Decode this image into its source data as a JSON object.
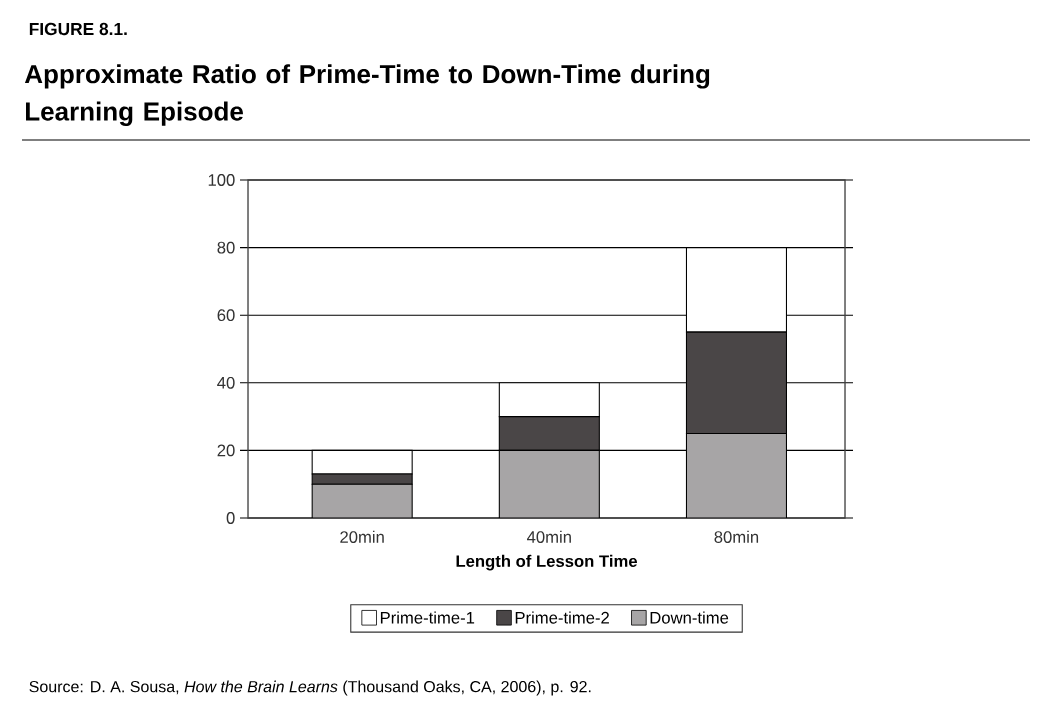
{
  "chart_data": {
    "type": "bar",
    "stacked": true,
    "subtitle": "FIGURE 8.1.",
    "title": "Approximate Ratio of Prime-Time to Down-Time during Learning Episode",
    "xlabel": "Length of Lesson Time",
    "categories": [
      "20min",
      "40min",
      "80min"
    ],
    "series": [
      {
        "name": "Down-time",
        "color": "#a7a5a6",
        "values": [
          10,
          20,
          25
        ]
      },
      {
        "name": "Prime-time-2",
        "color": "#4a4647",
        "values": [
          3,
          10,
          30
        ]
      },
      {
        "name": "Prime-time-1",
        "color": "#ffffff",
        "values": [
          7,
          10,
          25
        ]
      }
    ],
    "ylim": [
      0,
      100
    ],
    "yticks": [
      0,
      20,
      40,
      60,
      80,
      100
    ],
    "grid": "y",
    "legend": "bottom",
    "annotations": [
      "Source: D. A. Sousa, *How the Brain Learns* (Thousand Oaks, CA, 2006), p. 92."
    ]
  }
}
